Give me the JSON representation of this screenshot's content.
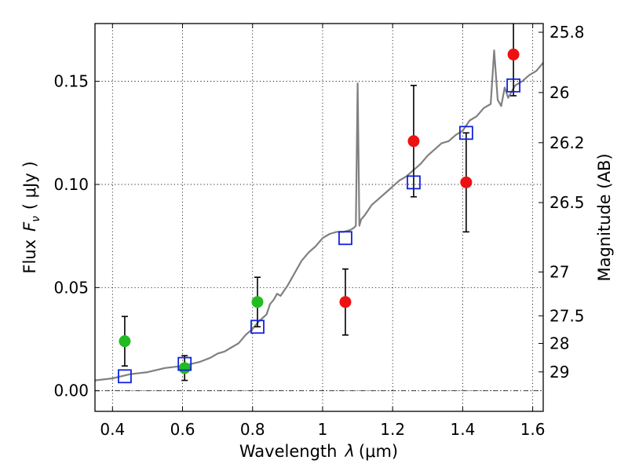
{
  "chart_data": {
    "type": "scatter",
    "xlabel": "Wavelength",
    "xlabel_symbol": "λ",
    "xlabel_unit": "(μm)",
    "ylabel": "Flux",
    "ylabel_symbol": "F",
    "ylabel_subscript": "ν",
    "ylabel_unit": "( μJy )",
    "y2label": "Magnitude (AB)",
    "xlim": [
      0.35,
      1.63
    ],
    "ylim": [
      -0.01,
      0.178
    ],
    "grid": true,
    "x_ticks": [
      0.4,
      0.6,
      0.8,
      1.0,
      1.2,
      1.4,
      1.6
    ],
    "x_tick_labels": [
      "0.4",
      "0.6",
      "0.8",
      "1",
      "1.2",
      "1.4",
      "1.6"
    ],
    "y_ticks": [
      0.0,
      0.05,
      0.1,
      0.15
    ],
    "y_tick_labels": [
      "0.00",
      "0.05",
      "0.10",
      "0.15"
    ],
    "y2_ticks": [
      25.8,
      26,
      26.2,
      26.5,
      27,
      27.5,
      28,
      29
    ],
    "y2_tick_labels": [
      "25.8",
      "26",
      "26.2",
      "26.5",
      "27",
      "27.5",
      "28",
      "29"
    ],
    "mag_zero_point_ujy": 3631000000.0,
    "series": [
      {
        "kind": "points",
        "marker": "circle",
        "color": "#22bb22",
        "x": [
          0.435,
          0.606,
          0.814
        ],
        "y": [
          0.024,
          0.011,
          0.043
        ],
        "err": [
          0.012,
          0.006,
          0.012
        ]
      },
      {
        "kind": "points",
        "marker": "circle",
        "color": "#ee1111",
        "x": [
          1.065,
          1.26,
          1.41,
          1.545
        ],
        "y": [
          0.043,
          0.121,
          0.101,
          0.163
        ],
        "err": [
          0.016,
          0.027,
          0.024,
          0.02
        ]
      },
      {
        "kind": "points",
        "marker": "open-square",
        "color": "#1122dd",
        "x": [
          0.435,
          0.606,
          0.814,
          1.065,
          1.26,
          1.41,
          1.545
        ],
        "y": [
          0.007,
          0.013,
          0.031,
          0.074,
          0.101,
          0.125,
          0.148
        ]
      },
      {
        "kind": "line",
        "color": "#808080",
        "x": [
          0.35,
          0.4,
          0.45,
          0.5,
          0.55,
          0.6,
          0.65,
          0.68,
          0.7,
          0.72,
          0.74,
          0.76,
          0.78,
          0.8,
          0.82,
          0.84,
          0.85,
          0.86,
          0.87,
          0.88,
          0.9,
          0.92,
          0.94,
          0.96,
          0.98,
          1.0,
          1.02,
          1.04,
          1.06,
          1.08,
          1.09,
          1.095,
          1.1,
          1.105,
          1.11,
          1.12,
          1.14,
          1.16,
          1.18,
          1.2,
          1.22,
          1.24,
          1.26,
          1.28,
          1.3,
          1.32,
          1.34,
          1.36,
          1.38,
          1.4,
          1.42,
          1.44,
          1.46,
          1.48,
          1.49,
          1.5,
          1.51,
          1.52,
          1.53,
          1.55,
          1.57,
          1.59,
          1.61,
          1.63
        ],
        "y": [
          0.005,
          0.006,
          0.008,
          0.009,
          0.011,
          0.012,
          0.014,
          0.016,
          0.018,
          0.019,
          0.021,
          0.023,
          0.027,
          0.03,
          0.034,
          0.037,
          0.042,
          0.044,
          0.047,
          0.046,
          0.051,
          0.057,
          0.063,
          0.067,
          0.07,
          0.074,
          0.076,
          0.077,
          0.077,
          0.078,
          0.079,
          0.08,
          0.149,
          0.08,
          0.083,
          0.085,
          0.09,
          0.093,
          0.096,
          0.099,
          0.102,
          0.104,
          0.107,
          0.11,
          0.114,
          0.117,
          0.12,
          0.121,
          0.124,
          0.126,
          0.131,
          0.133,
          0.137,
          0.139,
          0.165,
          0.141,
          0.138,
          0.147,
          0.142,
          0.148,
          0.15,
          0.153,
          0.155,
          0.159
        ]
      }
    ]
  }
}
